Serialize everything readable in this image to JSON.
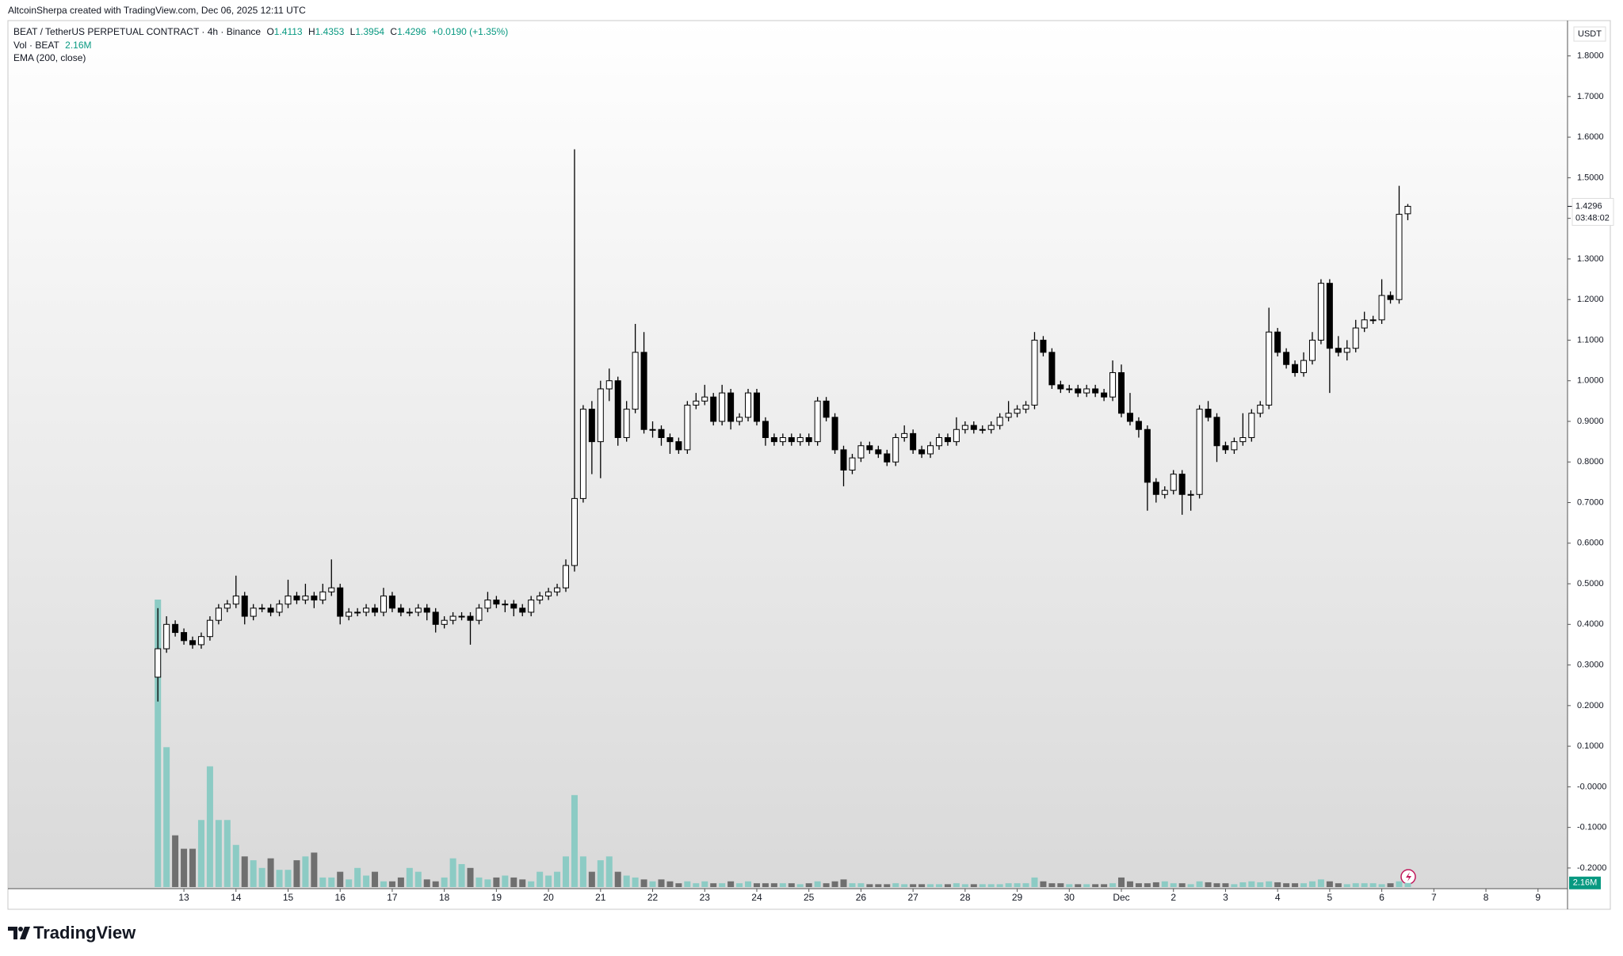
{
  "header": {
    "author_line": "AltcoinSherpa created with TradingView.com, Dec 06, 2025 12:11 UTC",
    "symbol": "BEAT / TetherUS PERPETUAL CONTRACT · 4h · Binance",
    "ohlc_labels": [
      "O",
      "H",
      "L",
      "C"
    ],
    "change": "+0.0190 (+1.35%)",
    "volume_legend": "Vol · BEAT",
    "indicator": "EMA (200, close)",
    "countdown": "03:48:02",
    "logo": "TradingView"
  },
  "chart_data": {
    "type": "candlestick",
    "currency": "USDT",
    "open": [
      0.27,
      0.34,
      0.4,
      0.38,
      0.36,
      0.35,
      0.37,
      0.41,
      0.44,
      0.45,
      0.47,
      0.42,
      0.44,
      0.44,
      0.43,
      0.45,
      0.47,
      0.46,
      0.47,
      0.46,
      0.48,
      0.49,
      0.42,
      0.43,
      0.43,
      0.44,
      0.43,
      0.47,
      0.44,
      0.43,
      0.43,
      0.44,
      0.43,
      0.4,
      0.41,
      0.42,
      0.42,
      0.41,
      0.44,
      0.46,
      0.45,
      0.45,
      0.44,
      0.43,
      0.46,
      0.47,
      0.48,
      0.49,
      0.545,
      0.71,
      0.93,
      0.85,
      0.98,
      1.0,
      0.86,
      0.93,
      1.07,
      0.88,
      0.88,
      0.86,
      0.85,
      0.83,
      0.94,
      0.95,
      0.96,
      0.9,
      0.97,
      0.9,
      0.91,
      0.97,
      0.9,
      0.86,
      0.85,
      0.86,
      0.85,
      0.86,
      0.85,
      0.95,
      0.91,
      0.83,
      0.78,
      0.81,
      0.84,
      0.83,
      0.82,
      0.8,
      0.86,
      0.87,
      0.83,
      0.82,
      0.84,
      0.86,
      0.85,
      0.88,
      0.89,
      0.88,
      0.88,
      0.89,
      0.91,
      0.92,
      0.93,
      0.94,
      1.1,
      1.07,
      0.99,
      0.98,
      0.98,
      0.97,
      0.98,
      0.97,
      0.96,
      1.02,
      0.92,
      0.9,
      0.88,
      0.75,
      0.72,
      0.73,
      0.77,
      0.72,
      0.72,
      0.93,
      0.91,
      0.84,
      0.83,
      0.85,
      0.86,
      0.92,
      0.94,
      1.12,
      1.07,
      1.04,
      1.02,
      1.05,
      1.1,
      1.24,
      1.08,
      1.07,
      1.08,
      1.13,
      1.15,
      1.15,
      1.21,
      1.2,
      1.4113
    ],
    "high": [
      0.44,
      0.42,
      0.41,
      0.39,
      0.37,
      0.38,
      0.42,
      0.45,
      0.46,
      0.52,
      0.48,
      0.45,
      0.45,
      0.45,
      0.46,
      0.51,
      0.48,
      0.5,
      0.48,
      0.5,
      0.56,
      0.5,
      0.44,
      0.44,
      0.45,
      0.45,
      0.49,
      0.48,
      0.45,
      0.44,
      0.45,
      0.45,
      0.44,
      0.42,
      0.43,
      0.43,
      0.43,
      0.45,
      0.48,
      0.47,
      0.46,
      0.46,
      0.45,
      0.47,
      0.48,
      0.49,
      0.5,
      0.56,
      1.57,
      0.94,
      0.95,
      1.0,
      1.03,
      1.01,
      0.95,
      1.14,
      1.12,
      0.9,
      0.89,
      0.87,
      0.86,
      0.95,
      0.97,
      0.99,
      0.97,
      0.99,
      0.98,
      0.92,
      0.98,
      0.98,
      0.91,
      0.87,
      0.87,
      0.87,
      0.87,
      0.87,
      0.96,
      0.96,
      0.92,
      0.84,
      0.82,
      0.85,
      0.85,
      0.84,
      0.83,
      0.87,
      0.89,
      0.88,
      0.84,
      0.85,
      0.87,
      0.87,
      0.91,
      0.9,
      0.9,
      0.89,
      0.9,
      0.92,
      0.95,
      0.94,
      0.95,
      1.12,
      1.11,
      1.08,
      1.0,
      0.99,
      0.99,
      0.99,
      0.99,
      0.98,
      1.05,
      1.04,
      0.97,
      0.91,
      0.89,
      0.76,
      0.74,
      0.78,
      0.78,
      0.73,
      0.94,
      0.95,
      0.92,
      0.85,
      0.86,
      0.92,
      0.93,
      0.95,
      1.18,
      1.13,
      1.08,
      1.05,
      1.07,
      1.12,
      1.25,
      1.25,
      1.11,
      1.1,
      1.15,
      1.17,
      1.16,
      1.25,
      1.22,
      1.48,
      1.4353
    ],
    "low": [
      0.21,
      0.33,
      0.37,
      0.35,
      0.34,
      0.34,
      0.36,
      0.4,
      0.43,
      0.44,
      0.4,
      0.41,
      0.43,
      0.42,
      0.42,
      0.44,
      0.45,
      0.45,
      0.44,
      0.45,
      0.47,
      0.4,
      0.41,
      0.42,
      0.42,
      0.42,
      0.42,
      0.43,
      0.42,
      0.42,
      0.42,
      0.41,
      0.38,
      0.39,
      0.4,
      0.41,
      0.35,
      0.4,
      0.43,
      0.44,
      0.43,
      0.42,
      0.42,
      0.42,
      0.45,
      0.46,
      0.47,
      0.48,
      0.53,
      0.7,
      0.77,
      0.76,
      0.95,
      0.84,
      0.85,
      0.92,
      0.87,
      0.86,
      0.84,
      0.82,
      0.82,
      0.82,
      0.93,
      0.94,
      0.89,
      0.89,
      0.88,
      0.89,
      0.9,
      0.89,
      0.84,
      0.84,
      0.84,
      0.84,
      0.84,
      0.84,
      0.84,
      0.9,
      0.82,
      0.74,
      0.77,
      0.8,
      0.82,
      0.81,
      0.79,
      0.79,
      0.85,
      0.82,
      0.81,
      0.81,
      0.83,
      0.84,
      0.84,
      0.87,
      0.87,
      0.87,
      0.87,
      0.88,
      0.9,
      0.91,
      0.92,
      0.93,
      1.06,
      0.98,
      0.97,
      0.97,
      0.96,
      0.96,
      0.96,
      0.95,
      0.95,
      0.91,
      0.89,
      0.86,
      0.68,
      0.7,
      0.71,
      0.72,
      0.67,
      0.68,
      0.71,
      0.9,
      0.8,
      0.82,
      0.82,
      0.84,
      0.85,
      0.91,
      0.93,
      1.06,
      1.03,
      1.01,
      1.01,
      1.04,
      1.09,
      0.97,
      1.06,
      1.05,
      1.07,
      1.12,
      1.14,
      1.14,
      1.19,
      1.19,
      1.3954
    ],
    "close": [
      0.34,
      0.4,
      0.38,
      0.36,
      0.35,
      0.37,
      0.41,
      0.44,
      0.45,
      0.47,
      0.42,
      0.44,
      0.44,
      0.43,
      0.45,
      0.47,
      0.46,
      0.47,
      0.46,
      0.48,
      0.49,
      0.42,
      0.43,
      0.43,
      0.44,
      0.43,
      0.47,
      0.44,
      0.43,
      0.43,
      0.44,
      0.43,
      0.4,
      0.41,
      0.42,
      0.42,
      0.41,
      0.44,
      0.46,
      0.45,
      0.45,
      0.44,
      0.43,
      0.46,
      0.47,
      0.48,
      0.49,
      0.545,
      0.71,
      0.93,
      0.85,
      0.98,
      1.0,
      0.86,
      0.93,
      1.07,
      0.88,
      0.88,
      0.86,
      0.85,
      0.83,
      0.94,
      0.95,
      0.96,
      0.9,
      0.97,
      0.9,
      0.91,
      0.97,
      0.9,
      0.86,
      0.85,
      0.86,
      0.85,
      0.86,
      0.85,
      0.95,
      0.91,
      0.83,
      0.78,
      0.81,
      0.84,
      0.83,
      0.82,
      0.8,
      0.86,
      0.87,
      0.83,
      0.82,
      0.84,
      0.86,
      0.85,
      0.88,
      0.89,
      0.88,
      0.88,
      0.89,
      0.91,
      0.92,
      0.93,
      0.94,
      1.1,
      1.07,
      0.99,
      0.98,
      0.98,
      0.97,
      0.98,
      0.97,
      0.96,
      1.02,
      0.92,
      0.9,
      0.88,
      0.75,
      0.72,
      0.73,
      0.77,
      0.72,
      0.72,
      0.93,
      0.91,
      0.84,
      0.83,
      0.85,
      0.86,
      0.92,
      0.94,
      1.12,
      1.07,
      1.04,
      1.02,
      1.05,
      1.1,
      1.24,
      1.08,
      1.07,
      1.08,
      1.13,
      1.15,
      1.15,
      1.21,
      1.2,
      1.41,
      1.4296
    ],
    "volume": [
      150,
      73,
      27,
      20,
      20,
      35,
      63,
      35,
      35,
      22,
      16,
      14,
      10,
      15,
      9,
      9,
      14,
      16,
      18,
      5,
      5,
      8,
      4,
      10,
      6,
      8,
      3,
      3,
      5,
      10,
      8,
      4,
      3,
      5,
      15,
      12,
      10,
      5,
      4,
      5,
      6,
      5,
      4,
      3,
      8,
      6,
      8,
      16,
      48,
      16,
      8,
      14,
      16,
      8,
      6,
      5,
      4,
      3,
      4,
      3,
      2,
      3,
      2,
      3,
      2,
      2,
      3,
      2,
      3,
      2,
      2,
      2,
      2,
      2,
      1.5,
      2,
      3,
      2,
      3,
      4,
      2,
      2,
      1.5,
      1.5,
      1.5,
      2,
      1.5,
      1.5,
      1.5,
      1.5,
      1.5,
      1.5,
      2,
      1.5,
      1.5,
      1.5,
      1.5,
      1.5,
      2,
      2,
      2,
      5,
      3,
      2,
      2,
      1.5,
      1.5,
      1.5,
      1.5,
      1.5,
      2,
      5,
      3,
      2,
      2,
      2.5,
      3,
      2,
      2,
      1.5,
      3,
      2.5,
      2,
      2,
      1.5,
      2.5,
      3,
      2.5,
      3,
      2.5,
      2,
      2,
      2,
      3,
      4,
      3,
      2,
      1.5,
      2,
      2,
      2,
      1.5,
      2,
      3,
      2.16
    ],
    "volume_label": "2.16M",
    "up_color": "#ffffff",
    "down_color": "#000000",
    "wick_color": "#000000",
    "volume_up_color": "#8ccbc4",
    "volume_down_color": "#6f6f6f",
    "label_color": "#089981",
    "xlim": [
      -17,
      162.4
    ],
    "xticks": [
      {
        "value": 3,
        "label": "13"
      },
      {
        "value": 9,
        "label": "14"
      },
      {
        "value": 15,
        "label": "15"
      },
      {
        "value": 21,
        "label": "16"
      },
      {
        "value": 27,
        "label": "17"
      },
      {
        "value": 33,
        "label": "18"
      },
      {
        "value": 39,
        "label": "19"
      },
      {
        "value": 45,
        "label": "20"
      },
      {
        "value": 51,
        "label": "21"
      },
      {
        "value": 57,
        "label": "22"
      },
      {
        "value": 63,
        "label": "23"
      },
      {
        "value": 69,
        "label": "24"
      },
      {
        "value": 75,
        "label": "25"
      },
      {
        "value": 81,
        "label": "26"
      },
      {
        "value": 87,
        "label": "27"
      },
      {
        "value": 93,
        "label": "28"
      },
      {
        "value": 99,
        "label": "29"
      },
      {
        "value": 105,
        "label": "30"
      },
      {
        "value": 111,
        "label": "Dec"
      },
      {
        "value": 117,
        "label": "2"
      },
      {
        "value": 123,
        "label": "3"
      },
      {
        "value": 129,
        "label": "4"
      },
      {
        "value": 135,
        "label": "5"
      },
      {
        "value": 141,
        "label": "6"
      },
      {
        "value": 147,
        "label": "7"
      },
      {
        "value": 153,
        "label": "8"
      },
      {
        "value": 159,
        "label": "9"
      }
    ],
    "ylim": [
      -0.247,
      1.887
    ],
    "yticks": [
      {
        "value": 1.8,
        "label": "1.8000"
      },
      {
        "value": 1.7,
        "label": "1.7000"
      },
      {
        "value": 1.6,
        "label": "1.6000"
      },
      {
        "value": 1.5,
        "label": "1.5000"
      },
      {
        "value": 1.4,
        "label": "1.4000"
      },
      {
        "value": 1.3,
        "label": "1.3000"
      },
      {
        "value": 1.2,
        "label": "1.2000"
      },
      {
        "value": 1.1,
        "label": "1.1000"
      },
      {
        "value": 1.0,
        "label": "1.0000"
      },
      {
        "value": 0.9,
        "label": "0.9000"
      },
      {
        "value": 0.8,
        "label": "0.8000"
      },
      {
        "value": 0.7,
        "label": "0.7000"
      },
      {
        "value": 0.6,
        "label": "0.6000"
      },
      {
        "value": 0.5,
        "label": "0.5000"
      },
      {
        "value": 0.4,
        "label": "0.4000"
      },
      {
        "value": 0.3,
        "label": "0.3000"
      },
      {
        "value": 0.2,
        "label": "0.2000"
      },
      {
        "value": 0.1,
        "label": "0.1000"
      },
      {
        "value": 0,
        "label": "-0.0000"
      },
      {
        "value": -0.1,
        "label": "-0.1000"
      },
      {
        "value": -0.2,
        "label": "-0.2000"
      }
    ],
    "grid": false
  }
}
